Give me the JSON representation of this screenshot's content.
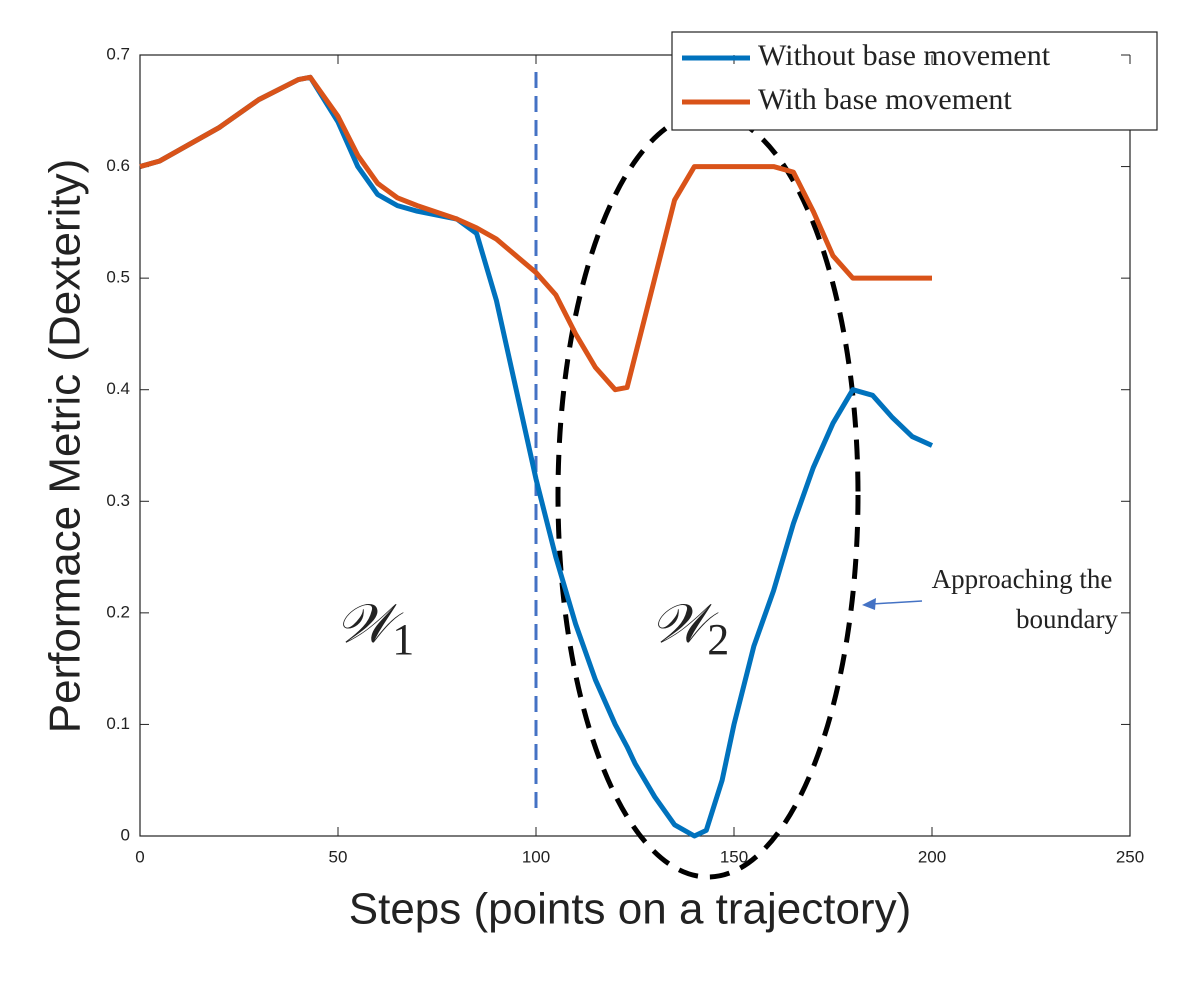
{
  "chart_data": {
    "type": "line",
    "xlabel": "Steps (points on a trajectory)",
    "ylabel": "Performace Metric (Dexterity)",
    "x": [
      0,
      5,
      10,
      20,
      30,
      40,
      43,
      50,
      55,
      60,
      65,
      70,
      80,
      85,
      90,
      95,
      100,
      105,
      110,
      115,
      120,
      123,
      125,
      130,
      135,
      140,
      143,
      147,
      150,
      155,
      160,
      165,
      170,
      175,
      180,
      185,
      190,
      195,
      200
    ],
    "series": [
      {
        "name": "Without base movement",
        "color": "#0072BD",
        "values": [
          0.6,
          0.605,
          0.615,
          0.635,
          0.66,
          0.678,
          0.68,
          0.64,
          0.6,
          0.575,
          0.565,
          0.56,
          0.553,
          0.54,
          0.48,
          0.4,
          0.32,
          0.25,
          0.19,
          0.14,
          0.1,
          0.08,
          0.065,
          0.035,
          0.01,
          0,
          0.005,
          0.05,
          0.1,
          0.17,
          0.22,
          0.28,
          0.33,
          0.37,
          0.4,
          0.395,
          0.375,
          0.358,
          0.35
        ]
      },
      {
        "name": "With base movement",
        "color": "#D95319",
        "values": [
          0.6,
          0.605,
          0.615,
          0.635,
          0.66,
          0.678,
          0.68,
          0.645,
          0.61,
          0.585,
          0.572,
          0.565,
          0.553,
          0.545,
          0.535,
          0.52,
          0.505,
          0.485,
          0.45,
          0.42,
          0.4,
          0.402,
          0.43,
          0.5,
          0.57,
          0.6,
          0.6,
          0.6,
          0.6,
          0.6,
          0.6,
          0.595,
          0.56,
          0.52,
          0.5,
          0.5,
          0.5,
          0.5,
          0.5
        ]
      }
    ],
    "xlim": [
      0,
      250
    ],
    "xticks": [
      0,
      50,
      100,
      150,
      200,
      250
    ],
    "ylim": [
      0,
      0.7
    ],
    "yticks": [
      0,
      0.1,
      0.2,
      0.3,
      0.4,
      0.5,
      0.6,
      0.7
    ],
    "reference_line": {
      "x": 100,
      "color": "#4472C4"
    },
    "regions": [
      {
        "symbol": "𝒲",
        "subscript": "1"
      },
      {
        "symbol": "𝒲",
        "subscript": "2"
      }
    ],
    "annotation": [
      "Approaching the",
      "boundary"
    ],
    "legend": "top-right"
  }
}
